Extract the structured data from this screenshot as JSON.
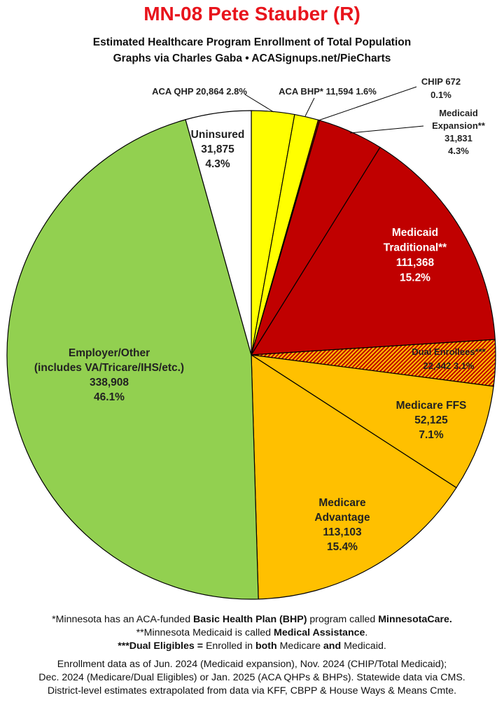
{
  "header": {
    "title": "MN-08 Pete Stauber (R)",
    "subtitle": "Estimated Healthcare Program Enrollment of Total Population",
    "credit": "Graphs via Charles Gaba  •  ACASignups.net/PieCharts"
  },
  "chart_data": {
    "type": "pie",
    "start_angle_deg": 0,
    "direction": "clockwise",
    "slices": [
      {
        "label": "ACA QHP",
        "value": 20864,
        "value_text": "20,864",
        "percent": "2.8%",
        "color": "#ffff00",
        "hatched": false
      },
      {
        "label": "ACA BHP*",
        "value": 11594,
        "value_text": "11,594",
        "percent": "1.6%",
        "color": "#ffff00",
        "hatched": false
      },
      {
        "label": "CHIP",
        "value": 672,
        "value_text": "672",
        "percent": "0.1%",
        "color": "#c00000",
        "hatched": false
      },
      {
        "label": "Medicaid Expansion**",
        "value": 31831,
        "value_text": "31,831",
        "percent": "4.3%",
        "color": "#c00000",
        "hatched": false
      },
      {
        "label": "Medicaid Traditional**",
        "value": 111368,
        "value_text": "111,368",
        "percent": "15.2%",
        "color": "#c00000",
        "hatched": false
      },
      {
        "label": "Dual Enrollees***",
        "value": 22442,
        "value_text": "22,442",
        "percent": "3.1%",
        "color": "#c00000",
        "hatched": true,
        "hatch_color": "#ffc000"
      },
      {
        "label": "Medicare FFS",
        "value": 52125,
        "value_text": "52,125",
        "percent": "7.1%",
        "color": "#ffc000",
        "hatched": false
      },
      {
        "label": "Medicare Advantage",
        "value": 113103,
        "value_text": "113,103",
        "percent": "15.4%",
        "color": "#ffc000",
        "hatched": false
      },
      {
        "label": "Employer/Other",
        "sublabel": "(includes VA/Tricare/IHS/etc.)",
        "value": 338908,
        "value_text": "338,908",
        "percent": "46.1%",
        "color": "#92d050",
        "hatched": false
      },
      {
        "label": "Uninsured",
        "value": 31875,
        "value_text": "31,875",
        "percent": "4.3%",
        "color": "#ffffff",
        "hatched": false
      }
    ],
    "labels": {
      "aca_qhp": "ACA QHP 20,864 2.8%",
      "aca_bhp": "ACA BHP* 11,594 1.6%",
      "chip": [
        "CHIP 672",
        "0.1%"
      ],
      "medicaid_expansion": [
        "Medicaid",
        "Expansion**",
        "31,831",
        "4.3%"
      ],
      "medicaid_traditional": [
        "Medicaid",
        "Traditional**",
        "111,368",
        "15.2%"
      ],
      "dual": [
        "Dual Enrollees***",
        "22,442 3.1%"
      ],
      "medicare_ffs": [
        "Medicare FFS",
        "52,125",
        "7.1%"
      ],
      "medicare_adv": [
        "Medicare",
        "Advantage",
        "113,103",
        "15.4%"
      ],
      "employer": [
        "Employer/Other",
        "(includes VA/Tricare/IHS/etc.)",
        "338,908",
        "46.1%"
      ],
      "uninsured": [
        "Uninsured",
        "31,875",
        "4.3%"
      ]
    }
  },
  "footnotes": {
    "l1_a": "*Minnesota has an ACA-funded ",
    "l1_b": "Basic Health Plan (BHP)",
    "l1_c": " program called ",
    "l1_d": "MinnesotaCare.",
    "l2_a": "**Minnesota Medicaid is called ",
    "l2_b": "Medical Assistance",
    "l2_c": ".",
    "l3_a": "***Dual Eligibles =",
    "l3_b": " Enrolled in ",
    "l3_c": "both",
    "l3_d": " Medicare ",
    "l3_e": "and",
    "l3_f": " Medicaid."
  },
  "sources": {
    "l1": "Enrollment data as of Jun. 2024 (Medicaid expansion), Nov. 2024 (CHIP/Total Medicaid);",
    "l2": "Dec. 2024 (Medicare/Dual Eligibles) or Jan. 2025 (ACA QHPs & BHPs). Statewide data via CMS.",
    "l3": "District-level estimates extrapolated from data via KFF, CBPP & House Ways & Means Cmte."
  }
}
